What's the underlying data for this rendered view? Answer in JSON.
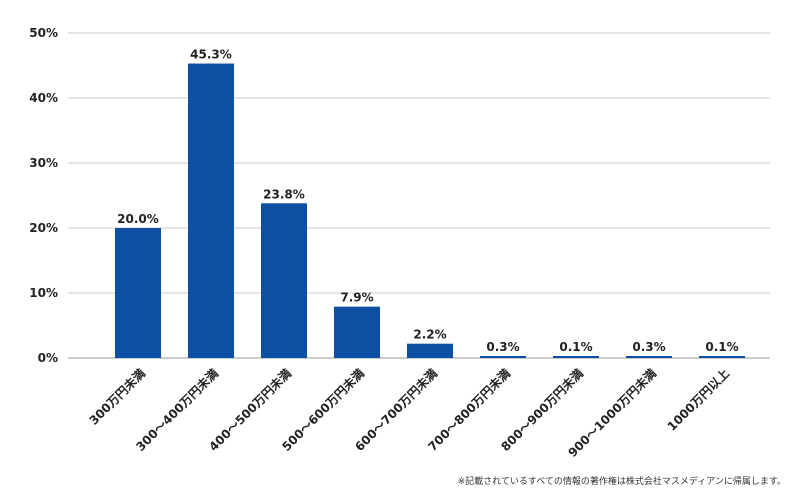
{
  "chart_data": {
    "type": "bar",
    "categories": [
      "300万円未満",
      "300～400万円未満",
      "400～500万円未満",
      "500～600万円未満",
      "600～700万円未満",
      "700～800万円未満",
      "800～900万円未満",
      "900～1000万円未満",
      "1000万円以上"
    ],
    "values": [
      20.0,
      45.3,
      23.8,
      7.9,
      2.2,
      0.3,
      0.1,
      0.3,
      0.1
    ],
    "value_labels": [
      "20.0%",
      "45.3%",
      "23.8%",
      "7.9%",
      "2.2%",
      "0.3%",
      "0.1%",
      "0.3%",
      "0.1%"
    ],
    "yticks": [
      "0%",
      "10%",
      "20%",
      "30%",
      "40%",
      "50%"
    ],
    "ylim": [
      0,
      50
    ],
    "grid": true,
    "bar_color": "#0d4fa3",
    "title": "",
    "xlabel": "",
    "ylabel": ""
  },
  "footnote": "※記載されているすべての情報の著作権は株式会社マスメディアンに帰属します。"
}
